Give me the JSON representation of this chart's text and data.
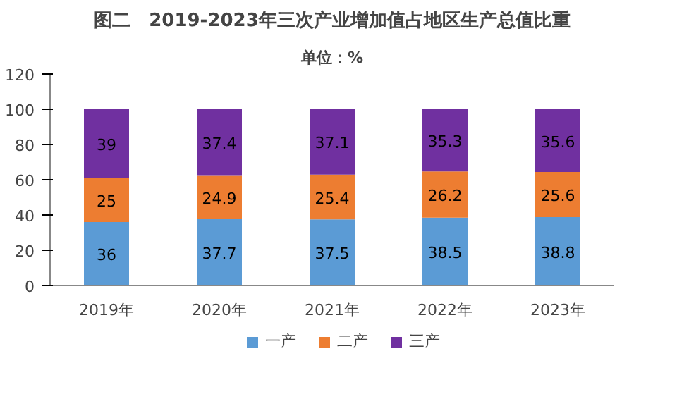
{
  "chart_data": {
    "type": "bar",
    "stacked": true,
    "title": "图二　2019-2023年三次产业增加值占地区生产总值比重",
    "subtitle": "单位：%",
    "categories": [
      "2019年",
      "2020年",
      "2021年",
      "2022年",
      "2023年"
    ],
    "series": [
      {
        "name": "一产",
        "color": "#5b9bd5",
        "values": [
          36,
          37.7,
          37.5,
          38.5,
          38.8
        ]
      },
      {
        "name": "二产",
        "color": "#ed7d31",
        "values": [
          25,
          24.9,
          25.4,
          26.2,
          25.6
        ]
      },
      {
        "name": "三产",
        "color": "#7030a0",
        "values": [
          39,
          37.4,
          37.1,
          35.3,
          35.6
        ]
      }
    ],
    "ylim": [
      0,
      120
    ],
    "yticks": [
      0,
      20,
      40,
      60,
      80,
      100,
      120
    ],
    "data_labels": true,
    "legend": "bottom",
    "grid": false
  }
}
